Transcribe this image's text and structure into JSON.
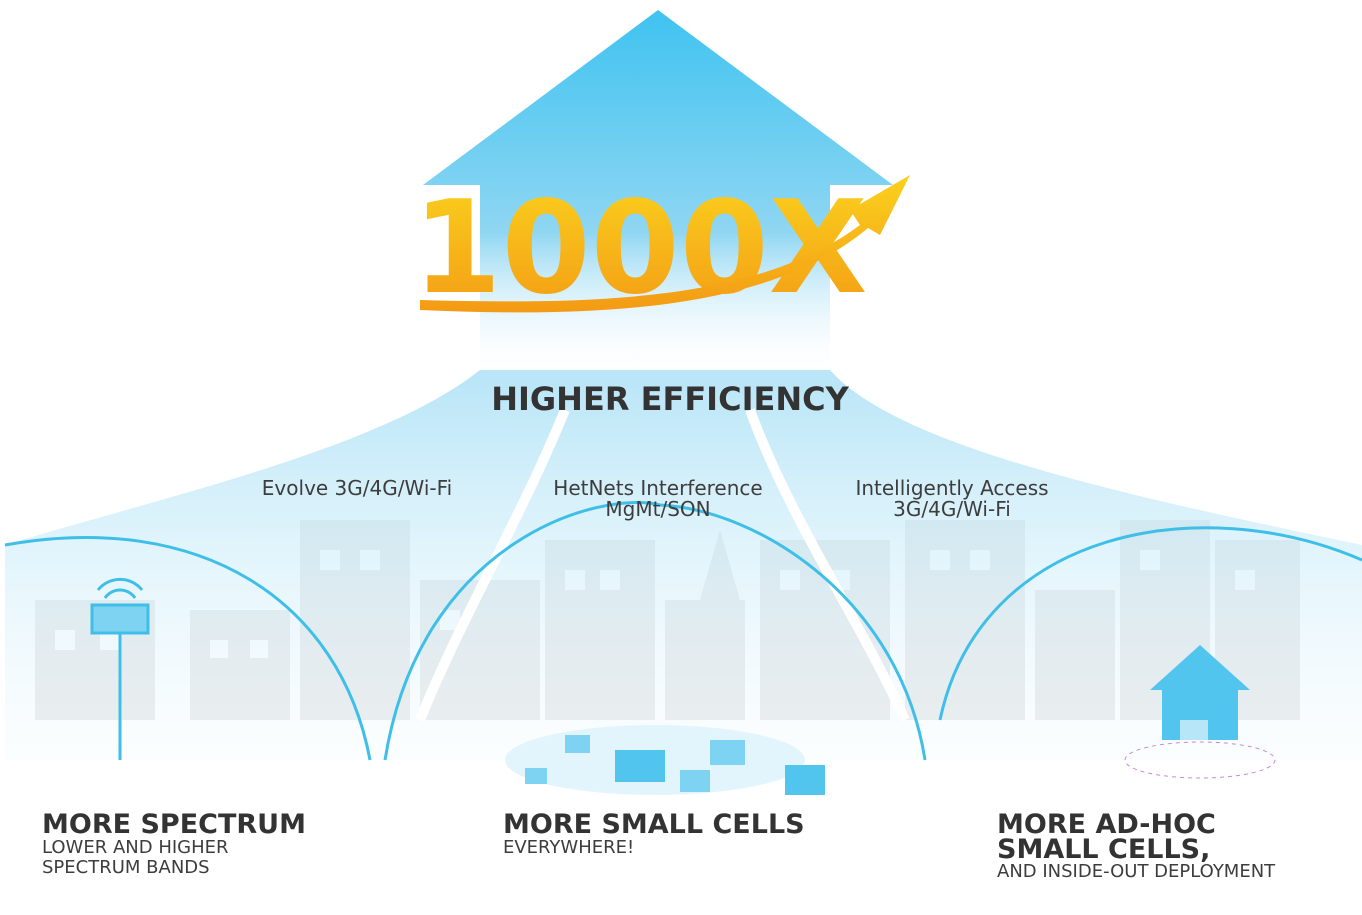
{
  "headline": {
    "text": "1000X",
    "subtitle": "HIGHER EFFICIENCY"
  },
  "streams": [
    {
      "lines": [
        "Evolve 3G/4G/Wi-Fi"
      ]
    },
    {
      "lines": [
        "HetNets Interference",
        "MgMt/SON"
      ]
    },
    {
      "lines": [
        "Intelligently Access",
        "3G/4G/Wi-Fi"
      ]
    }
  ],
  "pillars": [
    {
      "title": [
        "MORE SPECTRUM"
      ],
      "subtitle": [
        "LOWER AND HIGHER",
        "SPECTRUM BANDS"
      ]
    },
    {
      "title": [
        "MORE SMALL CELLS"
      ],
      "subtitle": [
        "EVERYWHERE!"
      ]
    },
    {
      "title": [
        "MORE AD-HOC",
        "SMALL CELLS,"
      ],
      "subtitle": [
        "AND INSIDE-OUT DEPLOYMENT"
      ]
    }
  ]
}
